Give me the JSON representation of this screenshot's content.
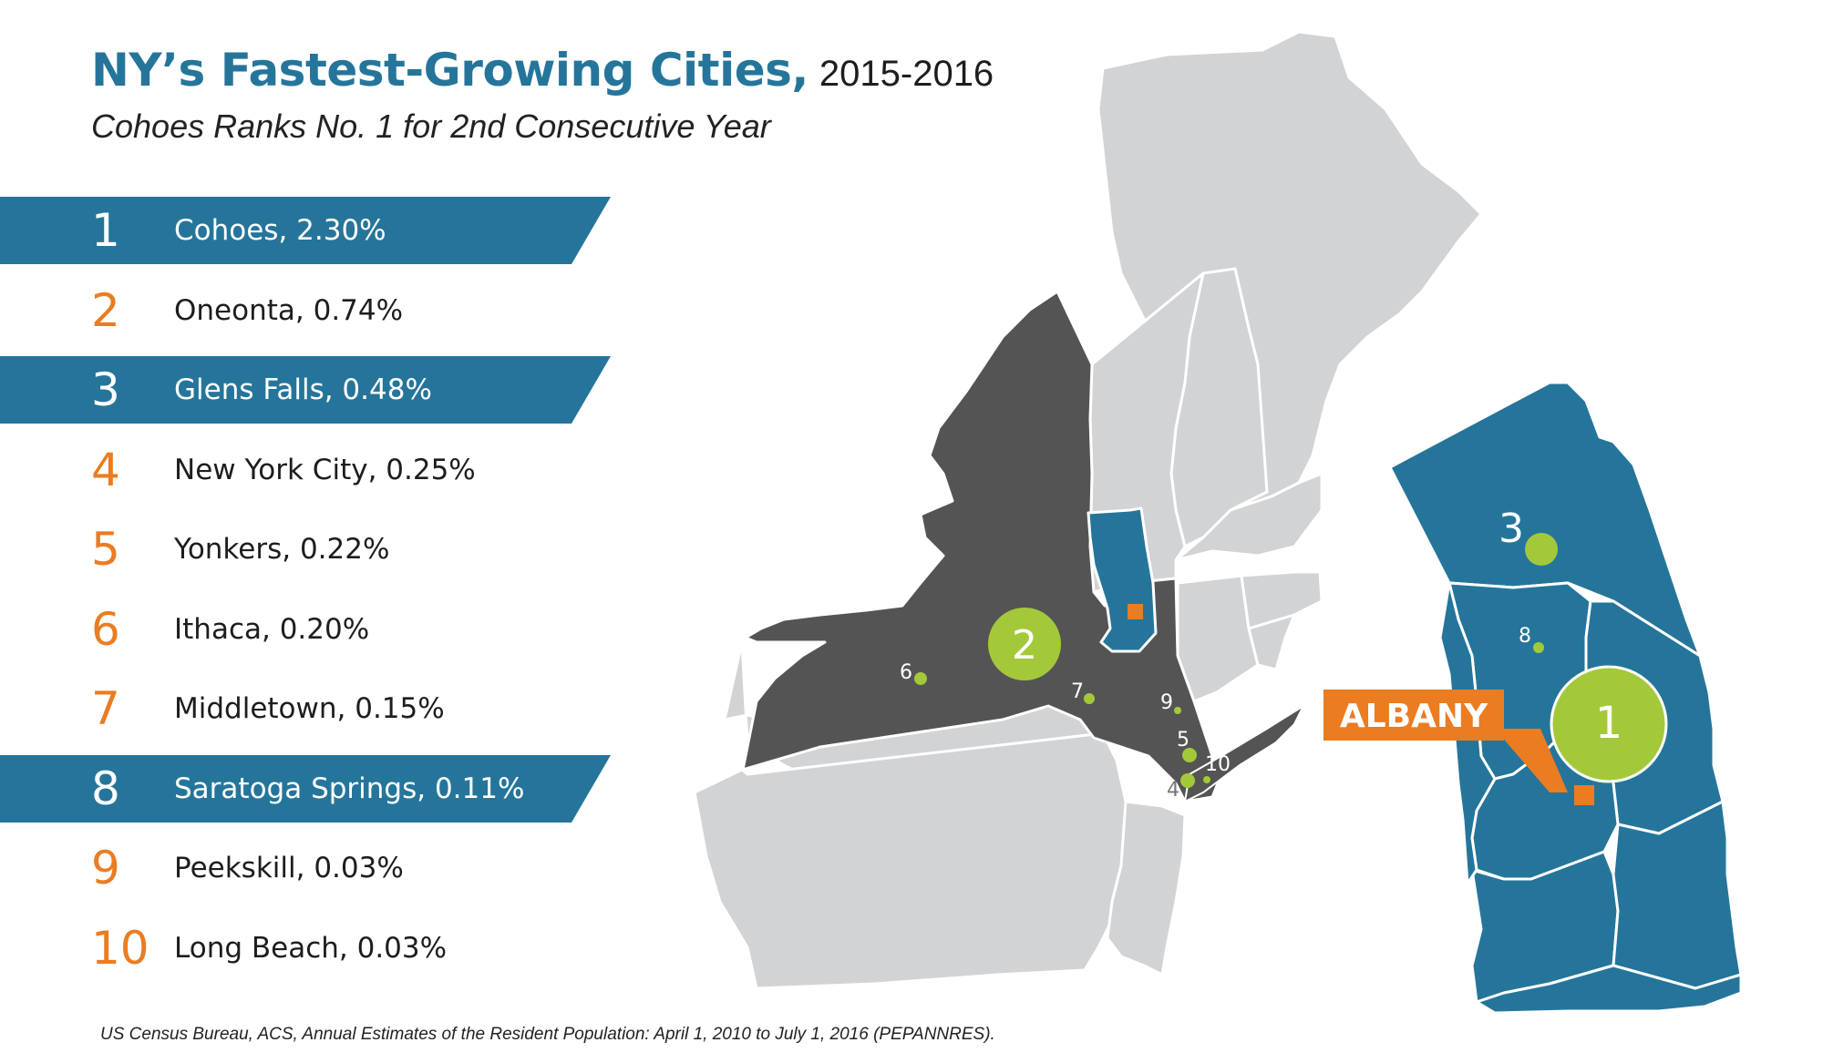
{
  "title": {
    "main": "NY’s Fastest-Growing Cities,",
    "years": "2015-2016"
  },
  "subtitle": "Cohoes Ranks No. 1 for 2nd Consecutive Year",
  "colors": {
    "teal": "#25759b",
    "orange": "#ea7c22",
    "green": "#a3c93a",
    "dark": "#545454",
    "light": "#d2d3d5",
    "text": "#1d1d1f"
  },
  "rankings": [
    {
      "rank": "1",
      "label": "Cohoes, 2.30%",
      "highlight": true
    },
    {
      "rank": "2",
      "label": "Oneonta, 0.74%",
      "highlight": false
    },
    {
      "rank": "3",
      "label": "Glens Falls, 0.48%",
      "highlight": true
    },
    {
      "rank": "4",
      "label": "New York City, 0.25%",
      "highlight": false
    },
    {
      "rank": "5",
      "label": "Yonkers, 0.22%",
      "highlight": false
    },
    {
      "rank": "6",
      "label": "Ithaca, 0.20%",
      "highlight": false
    },
    {
      "rank": "7",
      "label": "Middletown, 0.15%",
      "highlight": false
    },
    {
      "rank": "8",
      "label": "Saratoga Springs, 0.11%",
      "highlight": true
    },
    {
      "rank": "9",
      "label": "Peekskill, 0.03%",
      "highlight": false
    },
    {
      "rank": "10",
      "label": "Long Beach, 0.03%",
      "highlight": false
    }
  ],
  "map": {
    "callout": "ALBANY",
    "markers": {
      "m1": "1",
      "m2": "2",
      "m3": "3",
      "m4": "4",
      "m5": "5",
      "m6": "6",
      "m7": "7",
      "m8": "8",
      "m9": "9",
      "m10": "10"
    }
  },
  "source": "US Census Bureau, ACS, Annual Estimates of the Resident Population: April 1, 2010 to July 1, 2016 (PEPANNRES)."
}
